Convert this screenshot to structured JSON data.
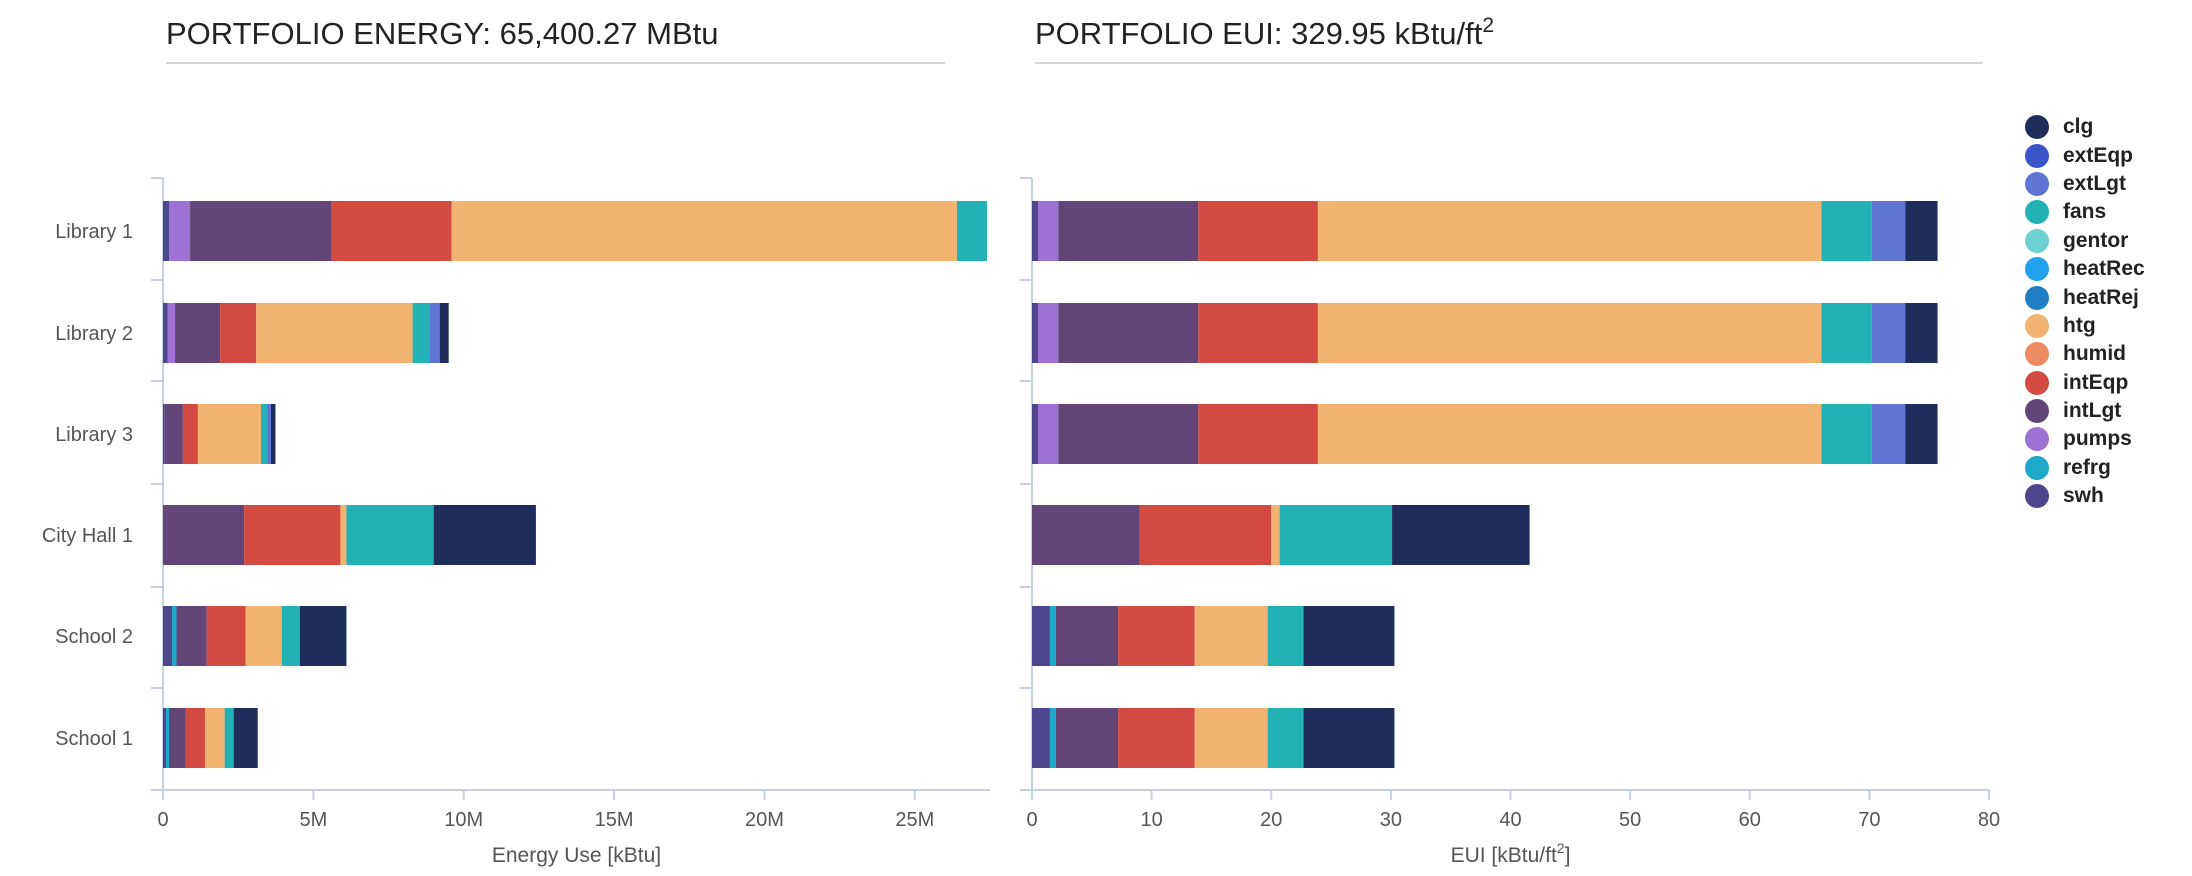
{
  "chart_data": [
    {
      "type": "bar",
      "orientation": "horizontal",
      "stacked": true,
      "title": "PORTFOLIO ENERGY: 65,400.27 MBtu",
      "xlabel": "Energy Use [kBtu]",
      "ylabel": "",
      "xlim": [
        0,
        27500000
      ],
      "xticks": [
        0,
        5000000,
        10000000,
        15000000,
        20000000,
        25000000
      ],
      "xtick_labels": [
        "0",
        "5M",
        "10M",
        "15M",
        "20M",
        "25M"
      ],
      "grid": false,
      "categories": [
        "Library 1",
        "Library 2",
        "Library 3",
        "City Hall 1",
        "School 2",
        "School 1"
      ],
      "series": [
        {
          "name": "swh",
          "values": [
            200000,
            150000,
            60000,
            0,
            300000,
            100000
          ]
        },
        {
          "name": "refrg",
          "values": [
            0,
            0,
            0,
            0,
            150000,
            100000
          ]
        },
        {
          "name": "pumps",
          "values": [
            700000,
            250000,
            0,
            0,
            0,
            0
          ]
        },
        {
          "name": "intLgt",
          "values": [
            4700000,
            1500000,
            600000,
            2700000,
            1000000,
            550000
          ]
        },
        {
          "name": "intEqp",
          "values": [
            4000000,
            1200000,
            500000,
            3200000,
            1300000,
            650000
          ]
        },
        {
          "name": "humid",
          "values": [
            0,
            0,
            0,
            0,
            0,
            0
          ]
        },
        {
          "name": "htg",
          "values": [
            16800000,
            5200000,
            2100000,
            200000,
            1200000,
            650000
          ]
        },
        {
          "name": "heatRej",
          "values": [
            0,
            0,
            0,
            0,
            0,
            0
          ]
        },
        {
          "name": "heatRec",
          "values": [
            0,
            0,
            0,
            0,
            0,
            0
          ]
        },
        {
          "name": "gentor",
          "values": [
            0,
            0,
            0,
            0,
            0,
            0
          ]
        },
        {
          "name": "fans",
          "values": [
            1000000,
            550000,
            200000,
            2900000,
            600000,
            300000
          ]
        },
        {
          "name": "extLgt",
          "values": [
            0,
            350000,
            130000,
            0,
            0,
            0
          ]
        },
        {
          "name": "extEqp",
          "values": [
            0,
            0,
            0,
            0,
            0,
            0
          ]
        },
        {
          "name": "clg",
          "values": [
            0,
            300000,
            150000,
            3400000,
            1550000,
            800000
          ]
        }
      ]
    },
    {
      "type": "bar",
      "orientation": "horizontal",
      "stacked": true,
      "title": "PORTFOLIO EUI: 329.95 kBtu/ft",
      "title_sup": "2",
      "xlabel": "EUI [kBtu/ft",
      "xlabel_sup": "2",
      "xlabel_suffix": "]",
      "ylabel": "",
      "xlim": [
        0,
        80
      ],
      "xticks": [
        0,
        10,
        20,
        30,
        40,
        50,
        60,
        70,
        80
      ],
      "xtick_labels": [
        "0",
        "10",
        "20",
        "30",
        "40",
        "50",
        "60",
        "70",
        "80"
      ],
      "grid": false,
      "categories": [
        "Library 1",
        "Library 2",
        "Library 3",
        "City Hall 1",
        "School 2",
        "School 1"
      ],
      "series": [
        {
          "name": "swh",
          "values": [
            0.5,
            0.5,
            0.5,
            0,
            1.5,
            1.5
          ]
        },
        {
          "name": "refrg",
          "values": [
            0,
            0,
            0,
            0,
            0.5,
            0.5
          ]
        },
        {
          "name": "pumps",
          "values": [
            1.7,
            1.7,
            1.7,
            0,
            0,
            0
          ]
        },
        {
          "name": "intLgt",
          "values": [
            11.7,
            11.7,
            11.7,
            9.0,
            5.2,
            5.2
          ]
        },
        {
          "name": "intEqp",
          "values": [
            10.0,
            10.0,
            10.0,
            11.0,
            6.4,
            6.4
          ]
        },
        {
          "name": "humid",
          "values": [
            0,
            0,
            0,
            0,
            0,
            0
          ]
        },
        {
          "name": "htg",
          "values": [
            42.1,
            42.1,
            42.1,
            0.7,
            6.1,
            6.1
          ]
        },
        {
          "name": "heatRej",
          "values": [
            0,
            0,
            0,
            0,
            0,
            0
          ]
        },
        {
          "name": "heatRec",
          "values": [
            0,
            0,
            0,
            0,
            0,
            0
          ]
        },
        {
          "name": "gentor",
          "values": [
            0,
            0,
            0,
            0,
            0,
            0
          ]
        },
        {
          "name": "fans",
          "values": [
            4.2,
            4.2,
            4.2,
            9.4,
            3.0,
            3.0
          ]
        },
        {
          "name": "extLgt",
          "values": [
            2.8,
            2.8,
            2.8,
            0,
            0,
            0
          ]
        },
        {
          "name": "extEqp",
          "values": [
            0,
            0,
            0,
            0,
            0,
            0
          ]
        },
        {
          "name": "clg",
          "values": [
            2.7,
            2.7,
            2.7,
            11.5,
            7.6,
            7.6
          ]
        }
      ]
    }
  ],
  "legend": {
    "placement": "right",
    "items": [
      {
        "name": "clg",
        "color": "#1f2d5c"
      },
      {
        "name": "extEqp",
        "color": "#3a55c8"
      },
      {
        "name": "extLgt",
        "color": "#5f74d3"
      },
      {
        "name": "fans",
        "color": "#22b2b5"
      },
      {
        "name": "gentor",
        "color": "#6dd1d1"
      },
      {
        "name": "heatRec",
        "color": "#21a0ec"
      },
      {
        "name": "heatRej",
        "color": "#1f7fc4"
      },
      {
        "name": "htg",
        "color": "#f2b370"
      },
      {
        "name": "humid",
        "color": "#ec8a62"
      },
      {
        "name": "intEqp",
        "color": "#d34a42"
      },
      {
        "name": "intLgt",
        "color": "#634677"
      },
      {
        "name": "pumps",
        "color": "#9d72d4"
      },
      {
        "name": "refrg",
        "color": "#1ea8c9"
      },
      {
        "name": "swh",
        "color": "#4e468c"
      }
    ]
  }
}
